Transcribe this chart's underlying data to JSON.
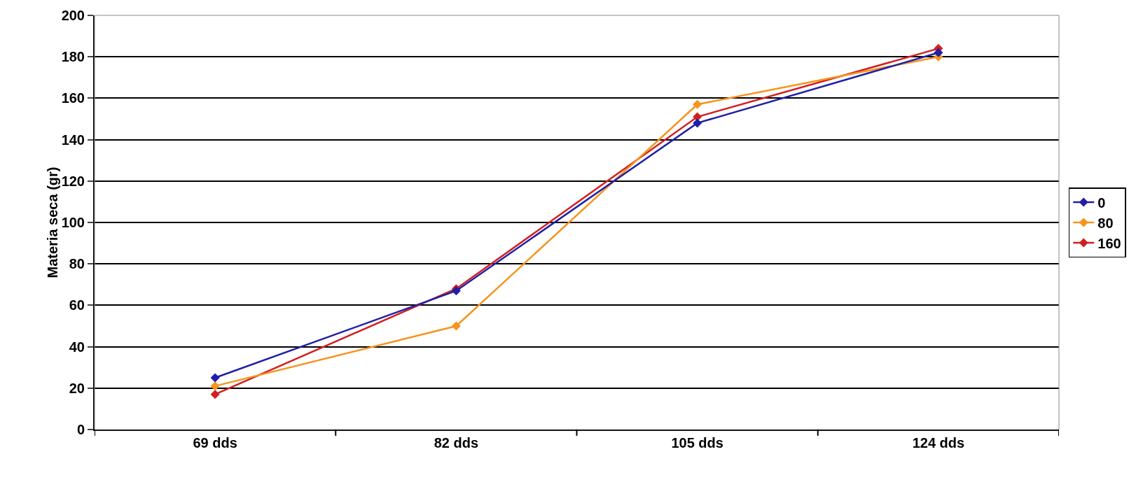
{
  "chart_data": {
    "type": "line",
    "ylabel": "Materia seca (gr)",
    "categories": [
      "69 dds",
      "82 dds",
      "105 dds",
      "124 dds"
    ],
    "series": [
      {
        "name": "0",
        "color": "#1f1fa8",
        "values": [
          25,
          67,
          148,
          182
        ]
      },
      {
        "name": "80",
        "color": "#f7941d",
        "values": [
          21,
          50,
          157,
          180
        ]
      },
      {
        "name": "160",
        "color": "#d11f1f",
        "values": [
          17,
          68,
          151,
          184
        ]
      }
    ],
    "ylim": [
      0,
      200
    ],
    "yticks": [
      0,
      20,
      40,
      60,
      80,
      100,
      120,
      140,
      160,
      180,
      200
    ],
    "grid": "y",
    "legend": "right",
    "marker": "diamond",
    "line_style": "solid"
  }
}
